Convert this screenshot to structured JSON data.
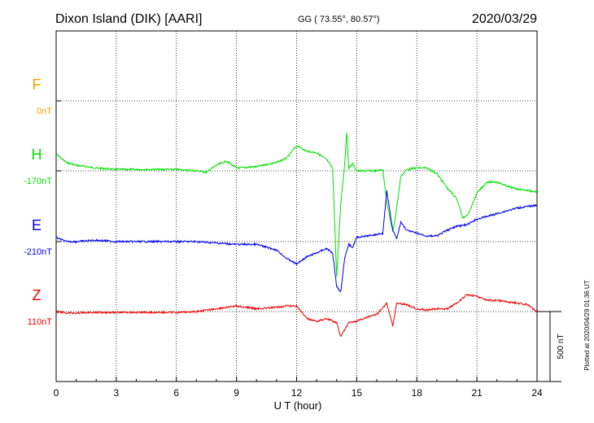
{
  "header": {
    "station": "Dixon Island (DIK)  [AARI]",
    "coords": "GG ( 73.55°,  80.57°)",
    "date": "2020/03/29"
  },
  "footer": {
    "plotted": "Plotted at 2020/04/29 01:36 UT"
  },
  "scale_bar": {
    "label": "500 nT"
  },
  "colors": {
    "F": "#f5a000",
    "H": "#00e000",
    "E": "#0000ee",
    "Z": "#ee0000"
  },
  "chart_data": {
    "type": "line",
    "title": "Dixon Island (DIK)  [AARI]",
    "xlabel": "U T (hour)",
    "xlim": [
      0,
      24
    ],
    "x_ticks": [
      "0",
      "3",
      "6",
      "9",
      "12",
      "15",
      "18",
      "21",
      "24"
    ],
    "scale_nT_per_division": 250,
    "grid": true,
    "channels": [
      {
        "name": "F",
        "baseline_label": "0nT",
        "color": "#f5a000",
        "points": []
      },
      {
        "name": "H",
        "baseline_label": "-170nT",
        "color": "#00e000",
        "points": [
          [
            0,
            -60
          ],
          [
            0.5,
            -30
          ],
          [
            1,
            -20
          ],
          [
            2,
            -10
          ],
          [
            3,
            -5
          ],
          [
            4,
            -5
          ],
          [
            5,
            -5
          ],
          [
            6,
            -5
          ],
          [
            7,
            0
          ],
          [
            7.5,
            5
          ],
          [
            8,
            -20
          ],
          [
            8.5,
            -35
          ],
          [
            9,
            -10
          ],
          [
            10,
            -15
          ],
          [
            11,
            -30
          ],
          [
            11.5,
            -45
          ],
          [
            12,
            -90
          ],
          [
            12.5,
            -70
          ],
          [
            13,
            -65
          ],
          [
            13.5,
            -40
          ],
          [
            13.8,
            -10
          ],
          [
            14.0,
            380
          ],
          [
            14.2,
            120
          ],
          [
            14.4,
            -25
          ],
          [
            14.5,
            -140
          ],
          [
            14.6,
            -10
          ],
          [
            14.8,
            -25
          ],
          [
            15,
            0
          ],
          [
            16,
            0
          ],
          [
            16.3,
            -5
          ],
          [
            16.5,
            110
          ],
          [
            16.8,
            220
          ],
          [
            17,
            130
          ],
          [
            17.2,
            20
          ],
          [
            17.5,
            -5
          ],
          [
            18,
            -10
          ],
          [
            18.5,
            -10
          ],
          [
            19,
            10
          ],
          [
            19.5,
            60
          ],
          [
            20,
            100
          ],
          [
            20.3,
            170
          ],
          [
            20.6,
            150
          ],
          [
            21,
            80
          ],
          [
            21.5,
            40
          ],
          [
            22,
            40
          ],
          [
            22.5,
            55
          ],
          [
            23,
            65
          ],
          [
            23.5,
            70
          ],
          [
            24,
            75
          ]
        ]
      },
      {
        "name": "E",
        "baseline_label": "-210nT",
        "color": "#0000ee",
        "points": [
          [
            0,
            -15
          ],
          [
            0.5,
            0
          ],
          [
            1,
            0
          ],
          [
            2,
            -5
          ],
          [
            3,
            0
          ],
          [
            4,
            0
          ],
          [
            5,
            0
          ],
          [
            6,
            0
          ],
          [
            7,
            0
          ],
          [
            8,
            5
          ],
          [
            9,
            10
          ],
          [
            10,
            10
          ],
          [
            11,
            30
          ],
          [
            11.5,
            60
          ],
          [
            12,
            80
          ],
          [
            12.5,
            55
          ],
          [
            13,
            40
          ],
          [
            13.5,
            25
          ],
          [
            13.8,
            40
          ],
          [
            14.0,
            160
          ],
          [
            14.2,
            180
          ],
          [
            14.4,
            60
          ],
          [
            14.6,
            10
          ],
          [
            14.8,
            20
          ],
          [
            15,
            -15
          ],
          [
            15.5,
            -20
          ],
          [
            16,
            -25
          ],
          [
            16.3,
            -30
          ],
          [
            16.5,
            -180
          ],
          [
            16.8,
            -40
          ],
          [
            17,
            -10
          ],
          [
            17.2,
            -70
          ],
          [
            17.5,
            -40
          ],
          [
            18,
            -30
          ],
          [
            18.5,
            -20
          ],
          [
            19,
            -20
          ],
          [
            19.5,
            -40
          ],
          [
            20,
            -55
          ],
          [
            20.5,
            -60
          ],
          [
            21,
            -80
          ],
          [
            21.5,
            -90
          ],
          [
            22,
            -100
          ],
          [
            22.5,
            -110
          ],
          [
            23,
            -120
          ],
          [
            23.5,
            -125
          ],
          [
            24,
            -130
          ]
        ]
      },
      {
        "name": "Z",
        "baseline_label": "110nT",
        "color": "#ee0000",
        "points": [
          [
            0,
            0
          ],
          [
            0.5,
            5
          ],
          [
            1,
            5
          ],
          [
            2,
            3
          ],
          [
            3,
            3
          ],
          [
            4,
            3
          ],
          [
            5,
            3
          ],
          [
            6,
            3
          ],
          [
            7,
            0
          ],
          [
            8,
            -10
          ],
          [
            9,
            -20
          ],
          [
            10,
            -10
          ],
          [
            11,
            -15
          ],
          [
            11.5,
            -20
          ],
          [
            12,
            -20
          ],
          [
            12.5,
            25
          ],
          [
            13,
            35
          ],
          [
            13.5,
            25
          ],
          [
            14,
            40
          ],
          [
            14.2,
            90
          ],
          [
            14.4,
            65
          ],
          [
            14.6,
            40
          ],
          [
            15,
            35
          ],
          [
            15.5,
            20
          ],
          [
            16,
            10
          ],
          [
            16.5,
            -30
          ],
          [
            16.8,
            50
          ],
          [
            17,
            -30
          ],
          [
            17.5,
            -25
          ],
          [
            18,
            -10
          ],
          [
            18.5,
            -5
          ],
          [
            19,
            -10
          ],
          [
            19.5,
            -10
          ],
          [
            20,
            -30
          ],
          [
            20.5,
            -60
          ],
          [
            21,
            -55
          ],
          [
            21.5,
            -40
          ],
          [
            22,
            -40
          ],
          [
            22.5,
            -35
          ],
          [
            23,
            -30
          ],
          [
            23.5,
            -25
          ],
          [
            24,
            0
          ]
        ]
      }
    ]
  }
}
